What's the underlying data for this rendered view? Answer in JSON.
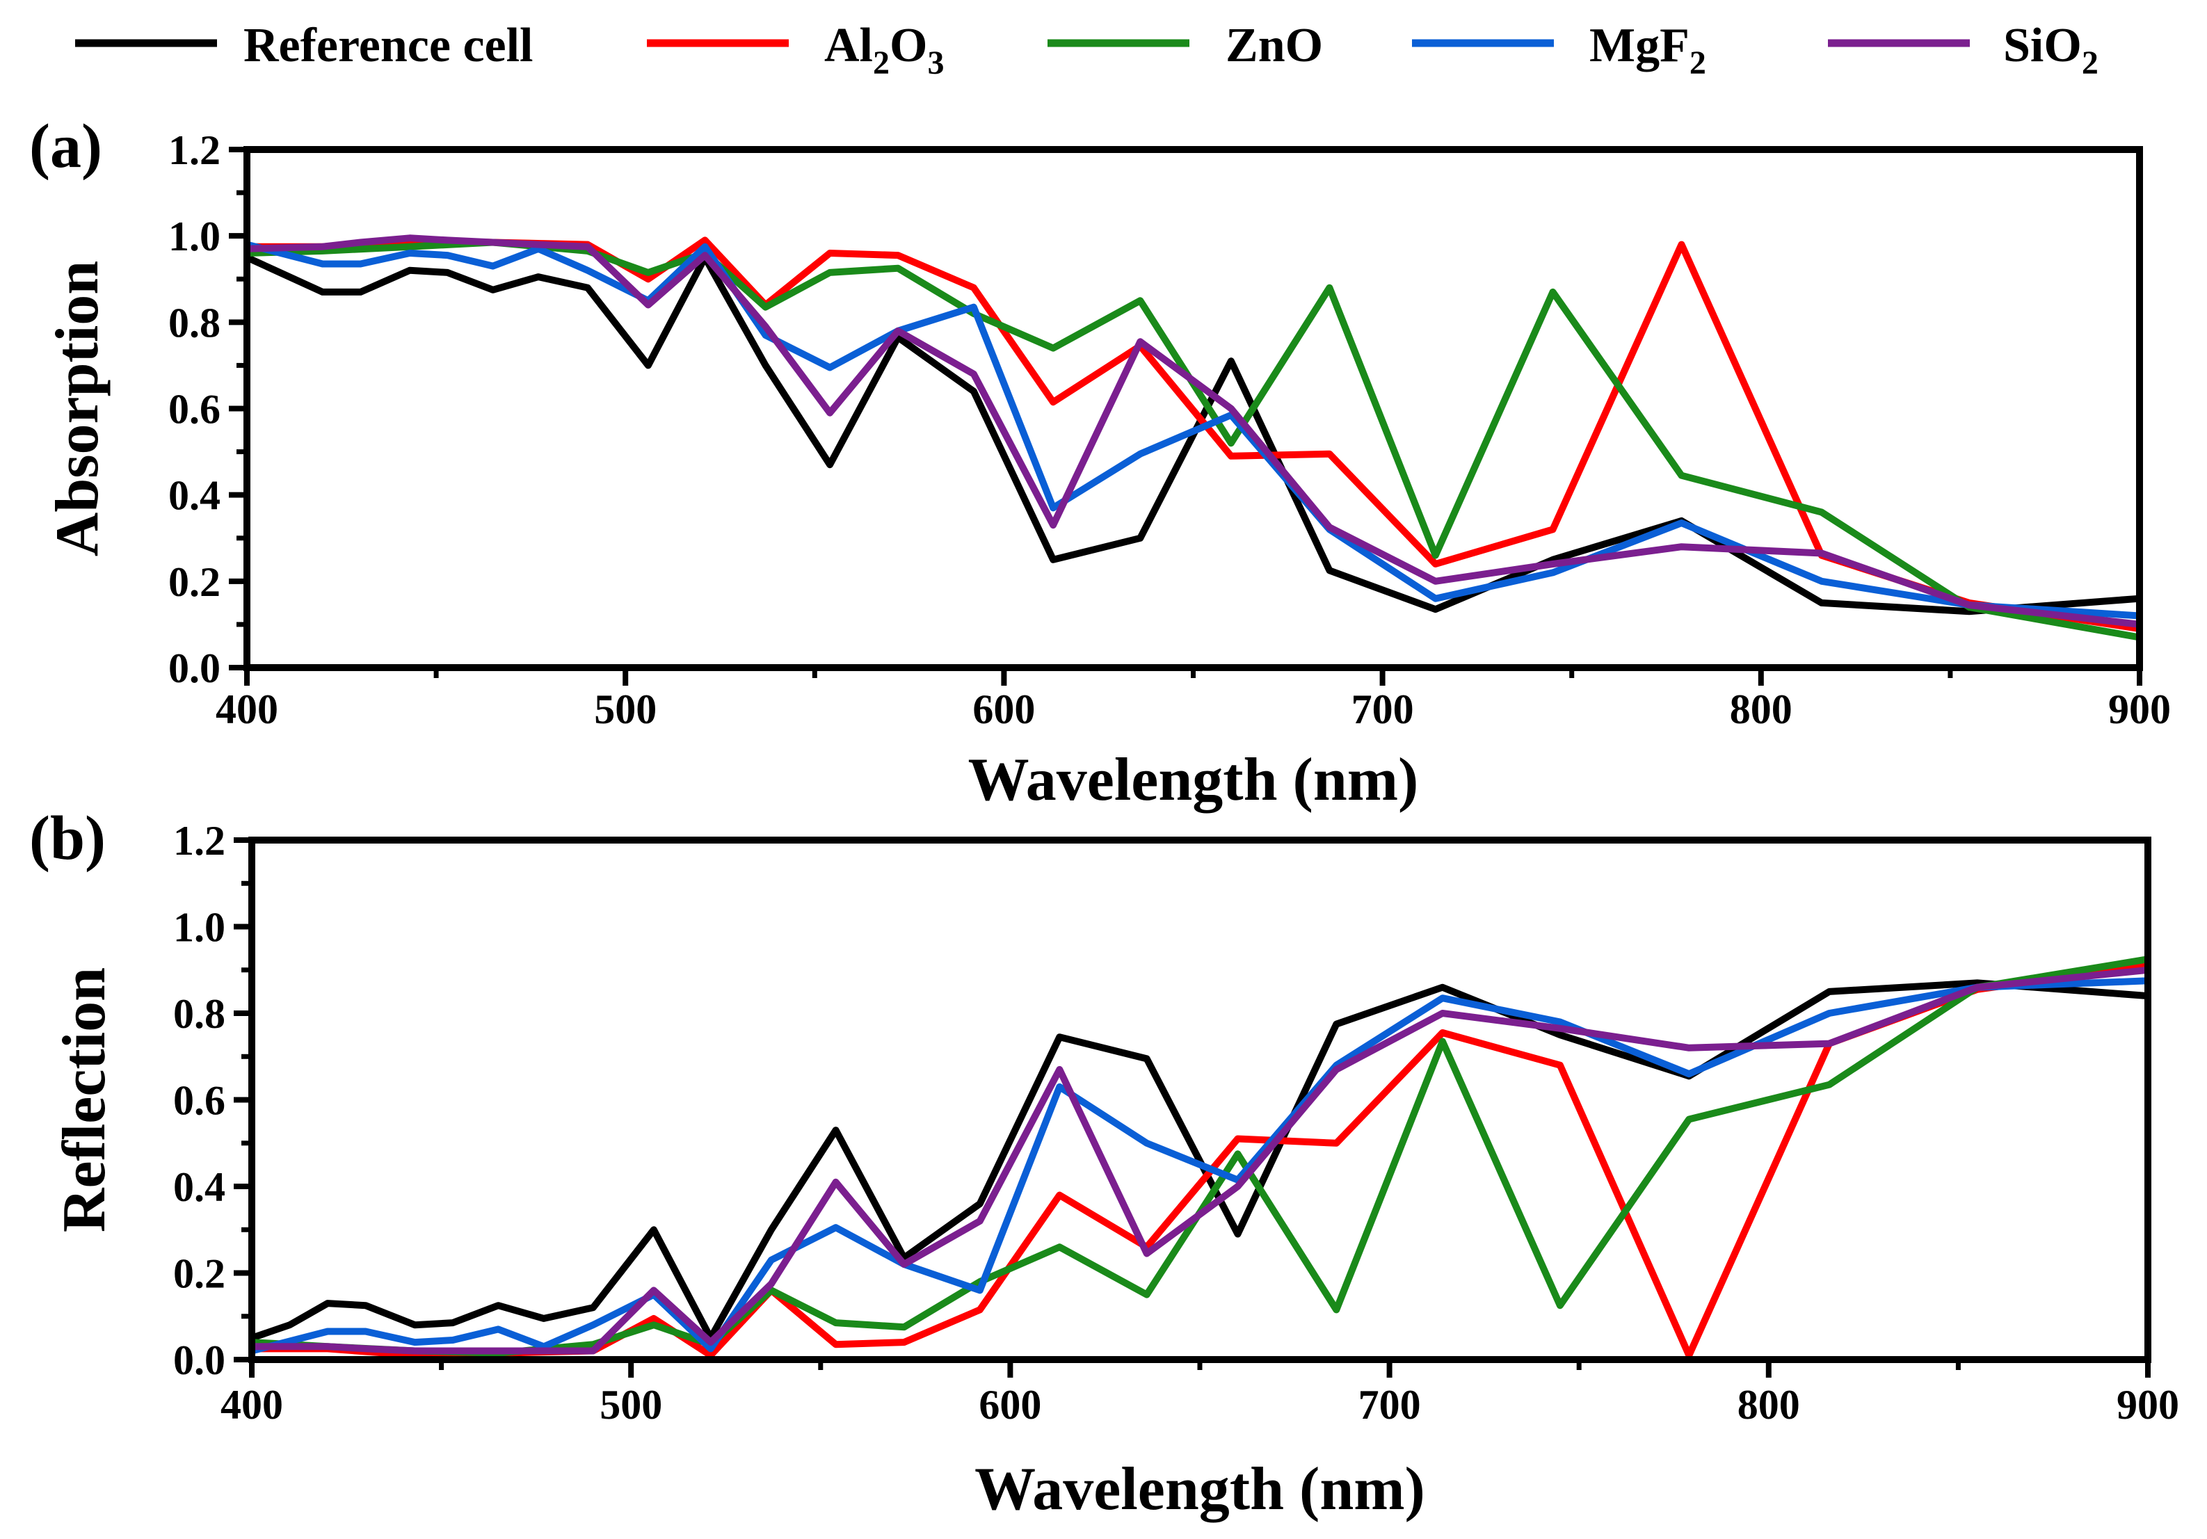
{
  "legend": [
    {
      "name": "Reference cell",
      "base": "Reference cell",
      "sub": "",
      "tail": "",
      "color": "#000000"
    },
    {
      "name": "Al2O3",
      "base": "Al",
      "sub": "2",
      "tail": "O",
      "sub2": "3",
      "color": "#ff0000"
    },
    {
      "name": "ZnO",
      "base": "ZnO",
      "sub": "",
      "tail": "",
      "color": "#1a8a1a"
    },
    {
      "name": "MgF2",
      "base": "MgF",
      "sub": "2",
      "tail": "",
      "color": "#0a5fd6"
    },
    {
      "name": "SiO2",
      "base": "SiO",
      "sub": "2",
      "tail": "",
      "color": "#7b1f8f"
    }
  ],
  "chart_data": [
    {
      "type": "line",
      "panel_label": "(a)",
      "xlabel": "Wavelength (nm)",
      "ylabel": "Absorption",
      "xlim": [
        400,
        900
      ],
      "ylim": [
        0.0,
        1.2
      ],
      "xticks": [
        400,
        500,
        600,
        700,
        800,
        900
      ],
      "yticks": [
        0.0,
        0.2,
        0.4,
        0.6,
        0.8,
        1.0,
        1.2
      ],
      "ytick_labels": [
        "0.0",
        "0.2",
        "0.4",
        "0.6",
        "0.8",
        "1.0",
        "1.2"
      ],
      "series": [
        {
          "name": "Reference cell",
          "color": "#000000",
          "x": [
            400,
            420,
            430,
            443,
            453,
            465,
            477,
            490,
            506,
            521,
            537,
            554,
            572,
            592,
            613,
            636,
            660,
            686,
            714,
            745,
            779,
            816,
            855,
            900
          ],
          "y": [
            0.95,
            0.87,
            0.87,
            0.92,
            0.915,
            0.875,
            0.905,
            0.88,
            0.7,
            0.95,
            0.7,
            0.47,
            0.765,
            0.64,
            0.25,
            0.3,
            0.71,
            0.225,
            0.135,
            0.25,
            0.34,
            0.15,
            0.13,
            0.16
          ]
        },
        {
          "name": "Al2O3",
          "color": "#ff0000",
          "x": [
            400,
            420,
            443,
            465,
            490,
            506,
            521,
            537,
            554,
            572,
            592,
            613,
            636,
            660,
            686,
            714,
            745,
            779,
            816,
            855,
            900
          ],
          "y": [
            0.975,
            0.975,
            0.99,
            0.985,
            0.98,
            0.9,
            0.99,
            0.84,
            0.96,
            0.955,
            0.88,
            0.615,
            0.745,
            0.49,
            0.495,
            0.24,
            0.32,
            0.98,
            0.26,
            0.15,
            0.09
          ]
        },
        {
          "name": "ZnO",
          "color": "#1a8a1a",
          "x": [
            400,
            420,
            443,
            465,
            490,
            506,
            521,
            537,
            554,
            572,
            592,
            613,
            636,
            660,
            686,
            714,
            745,
            779,
            816,
            855,
            900
          ],
          "y": [
            0.96,
            0.965,
            0.975,
            0.985,
            0.965,
            0.915,
            0.96,
            0.835,
            0.915,
            0.925,
            0.82,
            0.74,
            0.85,
            0.52,
            0.88,
            0.26,
            0.87,
            0.445,
            0.36,
            0.14,
            0.07
          ]
        },
        {
          "name": "MgF2",
          "color": "#0a5fd6",
          "x": [
            400,
            420,
            430,
            443,
            453,
            465,
            477,
            490,
            506,
            521,
            537,
            554,
            572,
            592,
            613,
            636,
            660,
            686,
            714,
            745,
            779,
            816,
            855,
            900
          ],
          "y": [
            0.98,
            0.935,
            0.935,
            0.96,
            0.955,
            0.93,
            0.97,
            0.92,
            0.85,
            0.975,
            0.77,
            0.695,
            0.78,
            0.835,
            0.37,
            0.495,
            0.585,
            0.32,
            0.16,
            0.22,
            0.335,
            0.2,
            0.145,
            0.12
          ]
        },
        {
          "name": "SiO2",
          "color": "#7b1f8f",
          "x": [
            400,
            420,
            430,
            443,
            453,
            465,
            477,
            490,
            506,
            521,
            537,
            554,
            572,
            592,
            613,
            636,
            660,
            686,
            714,
            745,
            779,
            816,
            855,
            900
          ],
          "y": [
            0.97,
            0.975,
            0.985,
            0.995,
            0.99,
            0.985,
            0.98,
            0.975,
            0.84,
            0.955,
            0.79,
            0.59,
            0.78,
            0.68,
            0.33,
            0.755,
            0.6,
            0.325,
            0.2,
            0.24,
            0.28,
            0.265,
            0.145,
            0.1
          ]
        }
      ]
    },
    {
      "type": "line",
      "panel_label": "(b)",
      "xlabel": "Wavelength (nm)",
      "ylabel": "Reflection",
      "xlim": [
        400,
        900
      ],
      "ylim": [
        0.0,
        1.2
      ],
      "xticks": [
        400,
        500,
        600,
        700,
        800,
        900
      ],
      "yticks": [
        0.0,
        0.2,
        0.4,
        0.6,
        0.8,
        1.0,
        1.2
      ],
      "ytick_labels": [
        "0.0",
        "0.2",
        "0.4",
        "0.6",
        "0.8",
        "1.0",
        "1.2"
      ],
      "series": [
        {
          "name": "Reference cell",
          "color": "#000000",
          "x": [
            400,
            410,
            420,
            430,
            443,
            453,
            465,
            477,
            490,
            506,
            521,
            537,
            554,
            572,
            592,
            613,
            636,
            660,
            686,
            714,
            745,
            779,
            816,
            855,
            900
          ],
          "y": [
            0.05,
            0.08,
            0.13,
            0.125,
            0.08,
            0.085,
            0.125,
            0.095,
            0.12,
            0.3,
            0.05,
            0.3,
            0.53,
            0.235,
            0.36,
            0.745,
            0.695,
            0.29,
            0.775,
            0.86,
            0.75,
            0.655,
            0.85,
            0.87,
            0.84
          ]
        },
        {
          "name": "Al2O3",
          "color": "#ff0000",
          "x": [
            400,
            420,
            443,
            465,
            490,
            506,
            521,
            537,
            554,
            572,
            592,
            613,
            636,
            660,
            686,
            714,
            745,
            779,
            816,
            855,
            900
          ],
          "y": [
            0.025,
            0.025,
            0.01,
            0.015,
            0.02,
            0.095,
            0.01,
            0.16,
            0.035,
            0.04,
            0.115,
            0.38,
            0.26,
            0.51,
            0.5,
            0.755,
            0.68,
            0.01,
            0.73,
            0.855,
            0.91
          ]
        },
        {
          "name": "ZnO",
          "color": "#1a8a1a",
          "x": [
            400,
            420,
            443,
            465,
            490,
            506,
            521,
            537,
            554,
            572,
            592,
            613,
            636,
            660,
            686,
            714,
            745,
            779,
            816,
            855,
            900
          ],
          "y": [
            0.04,
            0.03,
            0.02,
            0.015,
            0.035,
            0.08,
            0.035,
            0.16,
            0.085,
            0.075,
            0.18,
            0.26,
            0.15,
            0.475,
            0.115,
            0.735,
            0.125,
            0.555,
            0.635,
            0.86,
            0.925
          ]
        },
        {
          "name": "MgF2",
          "color": "#0a5fd6",
          "x": [
            400,
            420,
            430,
            443,
            453,
            465,
            477,
            490,
            506,
            521,
            537,
            554,
            572,
            592,
            613,
            636,
            660,
            686,
            714,
            745,
            779,
            816,
            855,
            900
          ],
          "y": [
            0.02,
            0.065,
            0.065,
            0.04,
            0.045,
            0.07,
            0.03,
            0.08,
            0.15,
            0.025,
            0.23,
            0.305,
            0.22,
            0.16,
            0.63,
            0.5,
            0.415,
            0.68,
            0.835,
            0.78,
            0.66,
            0.8,
            0.86,
            0.875
          ]
        },
        {
          "name": "SiO2",
          "color": "#7b1f8f",
          "x": [
            400,
            420,
            430,
            443,
            453,
            465,
            477,
            490,
            506,
            521,
            537,
            554,
            572,
            592,
            613,
            636,
            660,
            686,
            714,
            745,
            779,
            816,
            855,
            900
          ],
          "y": [
            0.03,
            0.03,
            0.025,
            0.02,
            0.02,
            0.02,
            0.02,
            0.02,
            0.16,
            0.04,
            0.175,
            0.41,
            0.22,
            0.32,
            0.67,
            0.245,
            0.4,
            0.67,
            0.8,
            0.765,
            0.72,
            0.73,
            0.86,
            0.9
          ]
        }
      ]
    }
  ]
}
